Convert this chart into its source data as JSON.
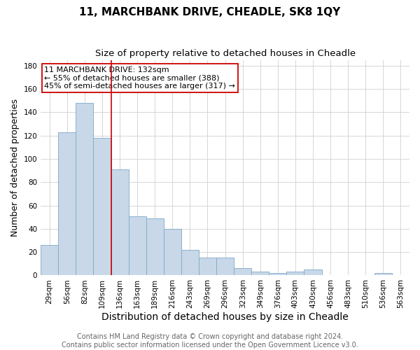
{
  "title": "11, MARCHBANK DRIVE, CHEADLE, SK8 1QY",
  "subtitle": "Size of property relative to detached houses in Cheadle",
  "xlabel": "Distribution of detached houses by size in Cheadle",
  "ylabel": "Number of detached properties",
  "categories": [
    "29sqm",
    "56sqm",
    "82sqm",
    "109sqm",
    "136sqm",
    "163sqm",
    "189sqm",
    "216sqm",
    "243sqm",
    "269sqm",
    "296sqm",
    "323sqm",
    "349sqm",
    "376sqm",
    "403sqm",
    "430sqm",
    "456sqm",
    "483sqm",
    "510sqm",
    "536sqm",
    "563sqm"
  ],
  "values": [
    26,
    123,
    148,
    118,
    91,
    51,
    49,
    40,
    22,
    15,
    15,
    6,
    3,
    2,
    3,
    5,
    0,
    0,
    0,
    2,
    0
  ],
  "bar_color": "#c8d8e8",
  "bar_edge_color": "#7fa8c8",
  "vline_x": 3.5,
  "vline_color": "#cc0000",
  "annotation_text": "11 MARCHBANK DRIVE: 132sqm\n← 55% of detached houses are smaller (388)\n45% of semi-detached houses are larger (317) →",
  "annotation_box_color": "#ffffff",
  "annotation_box_edge": "#cc0000",
  "ylim": [
    0,
    185
  ],
  "yticks": [
    0,
    20,
    40,
    60,
    80,
    100,
    120,
    140,
    160,
    180
  ],
  "footnote": "Contains HM Land Registry data © Crown copyright and database right 2024.\nContains public sector information licensed under the Open Government Licence v3.0.",
  "background_color": "#ffffff",
  "grid_color": "#d0d0d0",
  "title_fontsize": 11,
  "subtitle_fontsize": 9.5,
  "xlabel_fontsize": 10,
  "ylabel_fontsize": 9,
  "tick_fontsize": 7.5,
  "annotation_fontsize": 8,
  "footnote_fontsize": 7
}
